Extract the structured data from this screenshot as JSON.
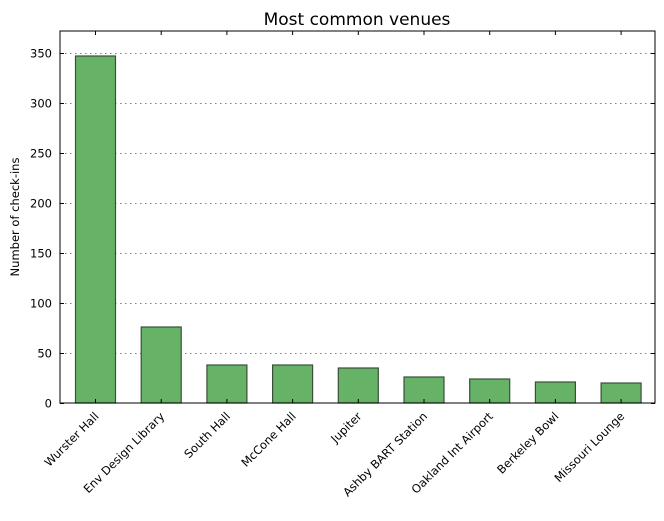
{
  "chart_data": {
    "type": "bar",
    "title": "Most common venues",
    "xlabel": "",
    "ylabel": "Number of check-ins",
    "categories": [
      "Wurster Hall",
      "Env Design Library",
      "South Hall",
      "McCone Hall",
      "Jupiter",
      "Ashby BART Station",
      "Oakland Int Airport",
      "Berkeley Bowl",
      "Missouri Lounge"
    ],
    "values": [
      347,
      76,
      38,
      38,
      35,
      26,
      24,
      21,
      20
    ],
    "ylim": [
      0,
      372
    ],
    "yticks": [
      0,
      50,
      100,
      150,
      200,
      250,
      300,
      350
    ],
    "grid": {
      "y": true,
      "x": false,
      "style": "dotted"
    },
    "legend": null,
    "colors": {
      "bar_fill": "#66b266",
      "bar_edge": "#3b4f3b",
      "grid": "#808080",
      "axis": "#000000"
    }
  }
}
